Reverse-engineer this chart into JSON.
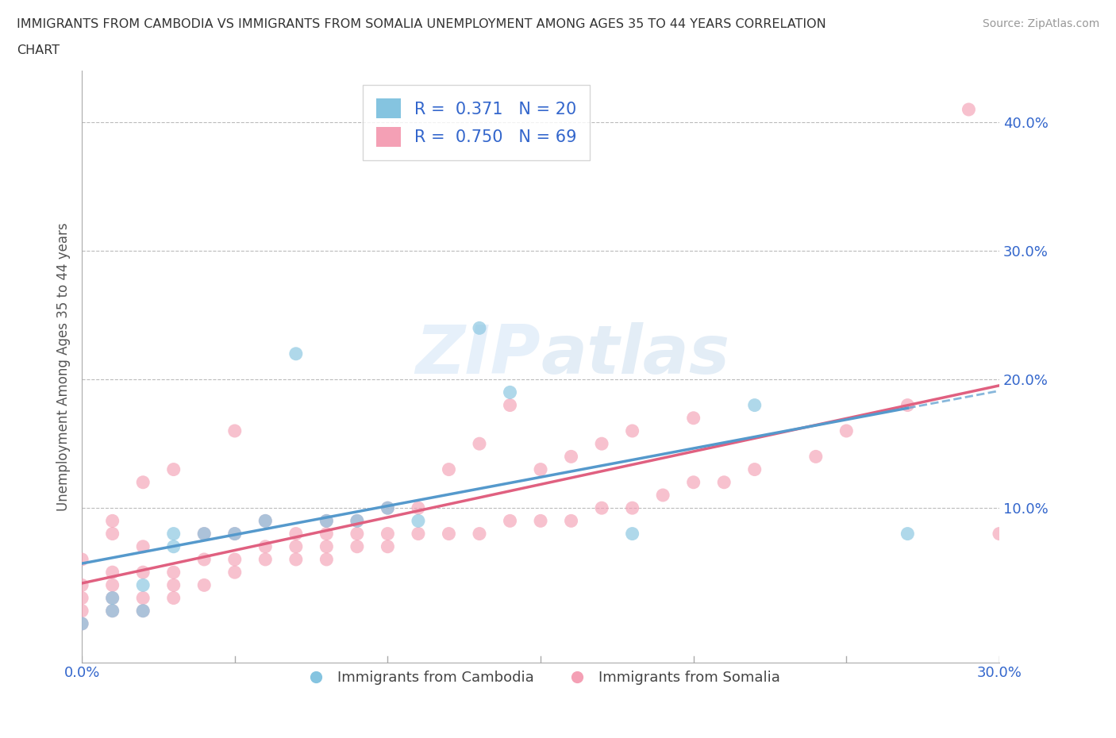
{
  "title_line1": "IMMIGRANTS FROM CAMBODIA VS IMMIGRANTS FROM SOMALIA UNEMPLOYMENT AMONG AGES 35 TO 44 YEARS CORRELATION",
  "title_line2": "CHART",
  "source": "Source: ZipAtlas.com",
  "ylabel": "Unemployment Among Ages 35 to 44 years",
  "xlim": [
    0.0,
    0.3
  ],
  "ylim": [
    -0.02,
    0.44
  ],
  "x_ticks": [
    0.0,
    0.05,
    0.1,
    0.15,
    0.2,
    0.25,
    0.3
  ],
  "x_tick_labels": [
    "0.0%",
    "",
    "",
    "",
    "",
    "",
    "30.0%"
  ],
  "y_ticks": [
    0.0,
    0.1,
    0.2,
    0.3,
    0.4
  ],
  "y_tick_labels": [
    "",
    "10.0%",
    "20.0%",
    "30.0%",
    "40.0%"
  ],
  "cambodia_color": "#85c4e0",
  "somalia_color": "#f4a0b5",
  "cambodia_line_color": "#5599cc",
  "somalia_line_color": "#e06080",
  "cambodia_R": 0.371,
  "cambodia_N": 20,
  "somalia_R": 0.75,
  "somalia_N": 69,
  "legend_text_color": "#3366cc",
  "watermark": "ZIPatlas",
  "cambodia_x": [
    0.0,
    0.01,
    0.01,
    0.02,
    0.02,
    0.03,
    0.03,
    0.04,
    0.05,
    0.06,
    0.07,
    0.08,
    0.09,
    0.1,
    0.11,
    0.13,
    0.14,
    0.18,
    0.22,
    0.27
  ],
  "cambodia_y": [
    0.01,
    0.02,
    0.03,
    0.02,
    0.04,
    0.07,
    0.08,
    0.08,
    0.08,
    0.09,
    0.22,
    0.09,
    0.09,
    0.1,
    0.09,
    0.24,
    0.19,
    0.08,
    0.18,
    0.08
  ],
  "somalia_x": [
    0.0,
    0.0,
    0.0,
    0.0,
    0.0,
    0.01,
    0.01,
    0.01,
    0.01,
    0.01,
    0.01,
    0.02,
    0.02,
    0.02,
    0.02,
    0.02,
    0.03,
    0.03,
    0.03,
    0.03,
    0.04,
    0.04,
    0.04,
    0.05,
    0.05,
    0.05,
    0.05,
    0.06,
    0.06,
    0.06,
    0.07,
    0.07,
    0.07,
    0.08,
    0.08,
    0.08,
    0.08,
    0.09,
    0.09,
    0.09,
    0.1,
    0.1,
    0.1,
    0.11,
    0.11,
    0.12,
    0.12,
    0.13,
    0.13,
    0.14,
    0.14,
    0.15,
    0.15,
    0.16,
    0.16,
    0.17,
    0.17,
    0.18,
    0.18,
    0.19,
    0.2,
    0.2,
    0.21,
    0.22,
    0.24,
    0.25,
    0.27,
    0.29,
    0.3
  ],
  "somalia_y": [
    0.01,
    0.02,
    0.03,
    0.04,
    0.06,
    0.02,
    0.03,
    0.04,
    0.05,
    0.08,
    0.09,
    0.02,
    0.03,
    0.05,
    0.07,
    0.12,
    0.03,
    0.04,
    0.05,
    0.13,
    0.04,
    0.06,
    0.08,
    0.05,
    0.06,
    0.08,
    0.16,
    0.06,
    0.07,
    0.09,
    0.06,
    0.07,
    0.08,
    0.06,
    0.07,
    0.08,
    0.09,
    0.07,
    0.08,
    0.09,
    0.07,
    0.08,
    0.1,
    0.08,
    0.1,
    0.08,
    0.13,
    0.08,
    0.15,
    0.09,
    0.18,
    0.09,
    0.13,
    0.09,
    0.14,
    0.1,
    0.15,
    0.1,
    0.16,
    0.11,
    0.12,
    0.17,
    0.12,
    0.13,
    0.14,
    0.16,
    0.18,
    0.41,
    0.08
  ],
  "bottom_legend_labels": [
    "Immigrants from Cambodia",
    "Immigrants from Somalia"
  ]
}
